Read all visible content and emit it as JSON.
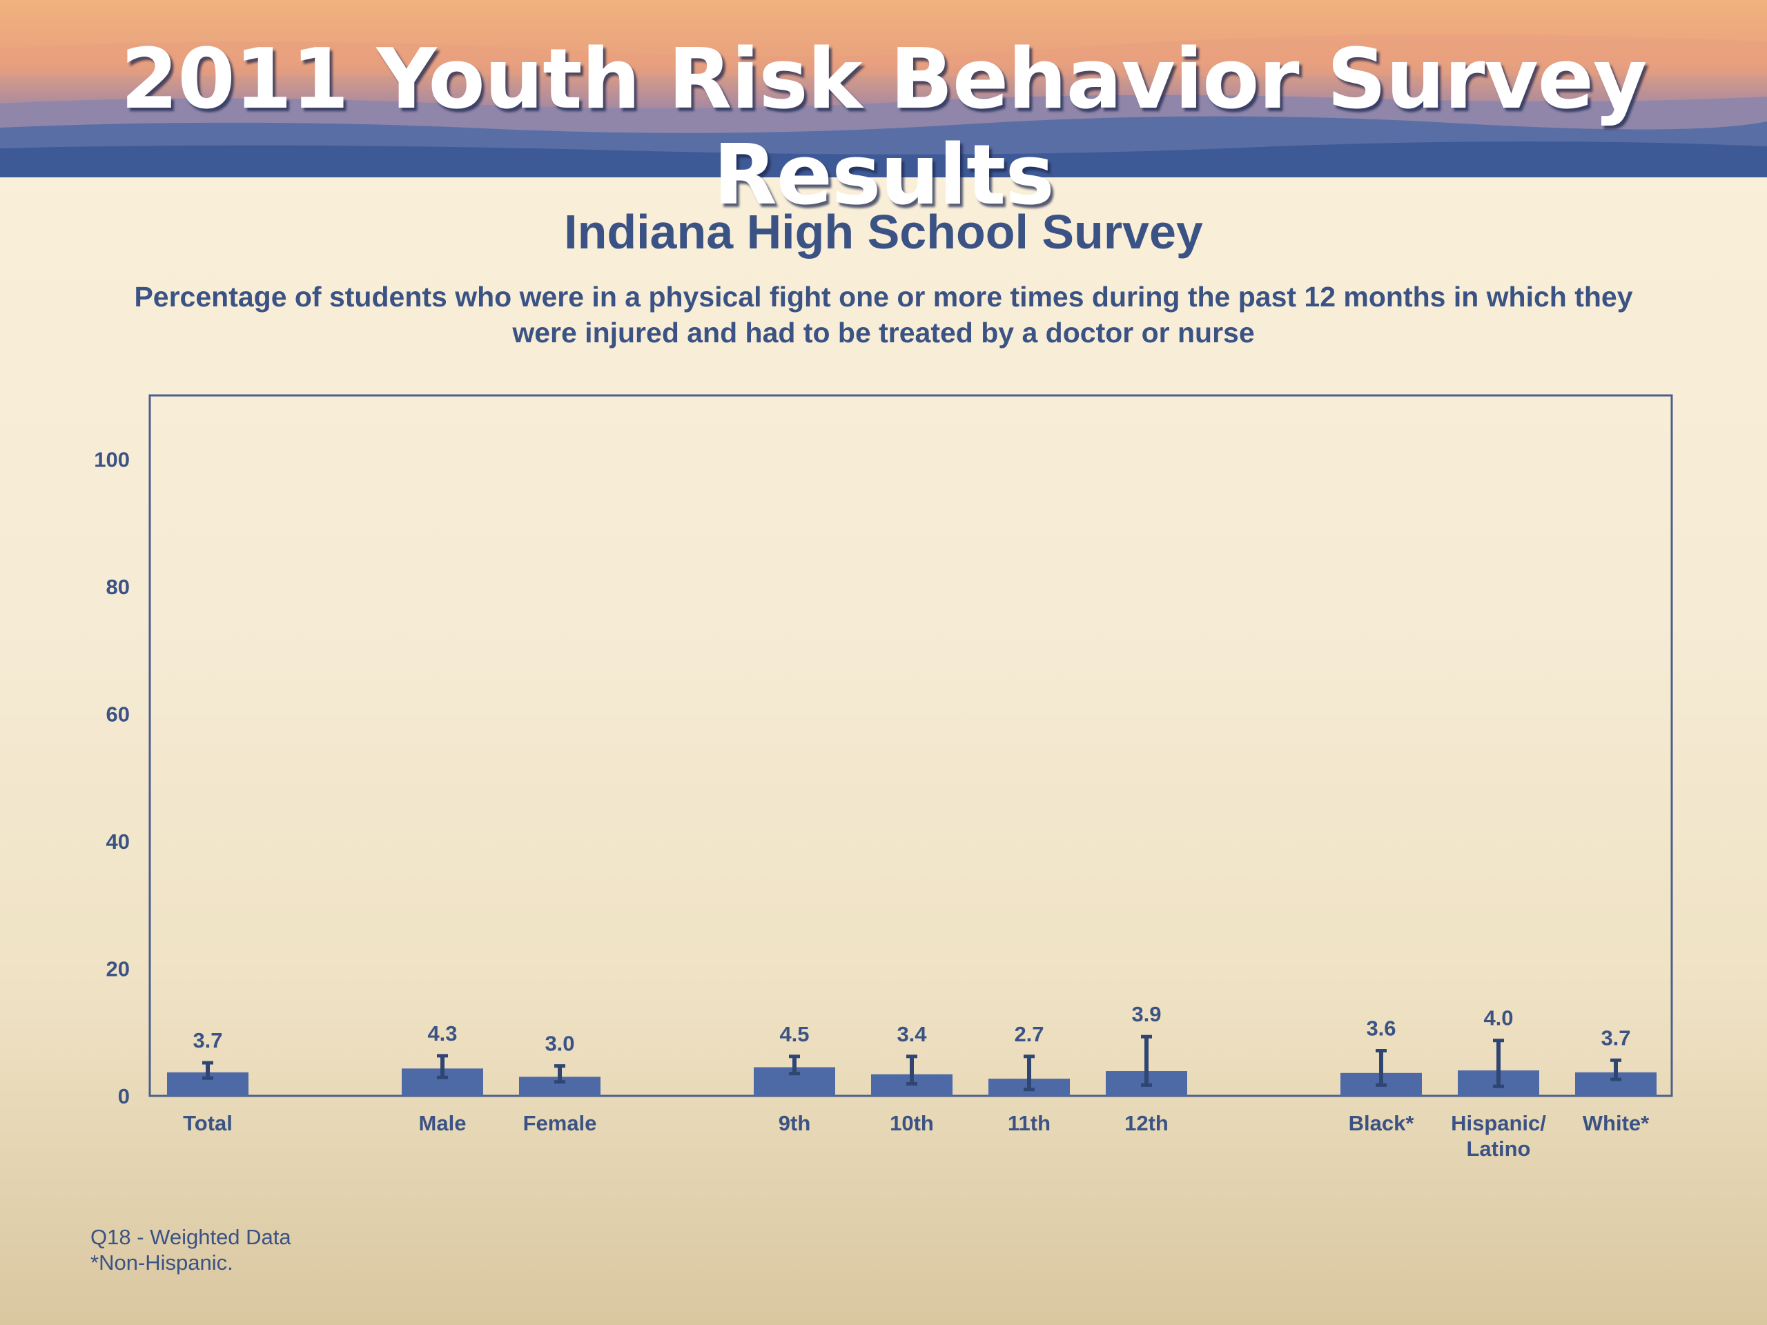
{
  "slide": {
    "banner_title": "2011 Youth Risk Behavior Survey Results",
    "colors": {
      "text": "#3b5284",
      "bar": "#4e6aa6",
      "frame": "#4a5f8c"
    }
  },
  "chart_data": {
    "type": "bar",
    "title": "Indiana High School Survey",
    "subtitle": "Percentage of students who were in a physical fight one or more times during the past 12 months in which they were injured and had to be treated by a doctor or nurse",
    "xlabel": "",
    "ylabel": "",
    "ylim": [
      0,
      110
    ],
    "yticks": [
      "0",
      "20",
      "40",
      "60",
      "80",
      "100"
    ],
    "grid": false,
    "legend": "none",
    "categories": [
      "Total",
      "Male",
      "Female",
      "9th",
      "10th",
      "11th",
      "12th",
      "Black*",
      "Hispanic/ Latino",
      "White*"
    ],
    "category_groups": [
      [
        "Total"
      ],
      [
        "Male",
        "Female"
      ],
      [
        "9th",
        "10th",
        "11th",
        "12th"
      ],
      [
        "Black*",
        "Hispanic/ Latino",
        "White*"
      ]
    ],
    "values": [
      3.7,
      4.3,
      3.0,
      4.5,
      3.4,
      2.7,
      3.9,
      3.6,
      4.0,
      3.7
    ],
    "value_labels": [
      "3.7",
      "4.3",
      "3.0",
      "4.5",
      "3.4",
      "2.7",
      "3.9",
      "3.6",
      "4.0",
      "3.7"
    ],
    "error_bars": [
      [
        2.8,
        5.2
      ],
      [
        2.9,
        6.3
      ],
      [
        2.2,
        4.7
      ],
      [
        3.5,
        6.2
      ],
      [
        1.9,
        6.2
      ],
      [
        1.0,
        6.2
      ],
      [
        1.7,
        9.3
      ],
      [
        1.7,
        7.1
      ],
      [
        1.5,
        8.7
      ],
      [
        2.6,
        5.6
      ]
    ]
  },
  "footnotes": [
    "Q18 - Weighted Data",
    "*Non-Hispanic."
  ]
}
